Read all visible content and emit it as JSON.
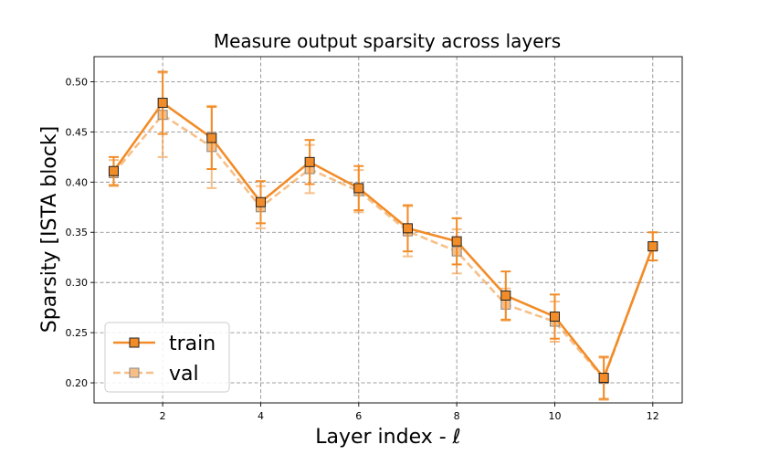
{
  "chart_data": {
    "type": "line",
    "title": "Measure output sparsity across layers",
    "xlabel": "Layer index - ℓ",
    "ylabel": "Sparsity [ISTA block]",
    "xlim": [
      0.6,
      12.6
    ],
    "ylim": [
      0.18,
      0.525
    ],
    "xticks": [
      2,
      4,
      6,
      8,
      10,
      12
    ],
    "xtick_labels": [
      "2",
      "4",
      "6",
      "8",
      "10",
      "12"
    ],
    "yticks": [
      0.2,
      0.25,
      0.3,
      0.35,
      0.4,
      0.45,
      0.5
    ],
    "ytick_labels": [
      "0.20",
      "0.25",
      "0.30",
      "0.35",
      "0.40",
      "0.45",
      "0.50"
    ],
    "grid": true,
    "legend_position": "lower-left",
    "x": [
      1,
      2,
      3,
      4,
      5,
      6,
      7,
      8,
      9,
      10,
      11,
      12
    ],
    "series": [
      {
        "name": "train",
        "color": "#f28c28",
        "linestyle": "solid",
        "alpha": 1.0,
        "values": [
          0.411,
          0.479,
          0.444,
          0.38,
          0.42,
          0.394,
          0.354,
          0.341,
          0.287,
          0.266,
          0.205,
          0.336
        ],
        "error": [
          0.014,
          0.031,
          0.031,
          0.021,
          0.022,
          0.022,
          0.023,
          0.023,
          0.024,
          0.022,
          0.021,
          0.014
        ]
      },
      {
        "name": "val",
        "color": "#f28c28",
        "linestyle": "dashed",
        "alpha": 0.55,
        "values": [
          0.409,
          0.467,
          0.435,
          0.375,
          0.413,
          0.391,
          0.351,
          0.331,
          0.278,
          0.261,
          0.204,
          0.336
        ],
        "error": [
          0.013,
          0.042,
          0.041,
          0.021,
          0.024,
          0.021,
          0.025,
          0.022,
          0.016,
          0.02,
          0.021,
          0.014
        ]
      }
    ]
  }
}
